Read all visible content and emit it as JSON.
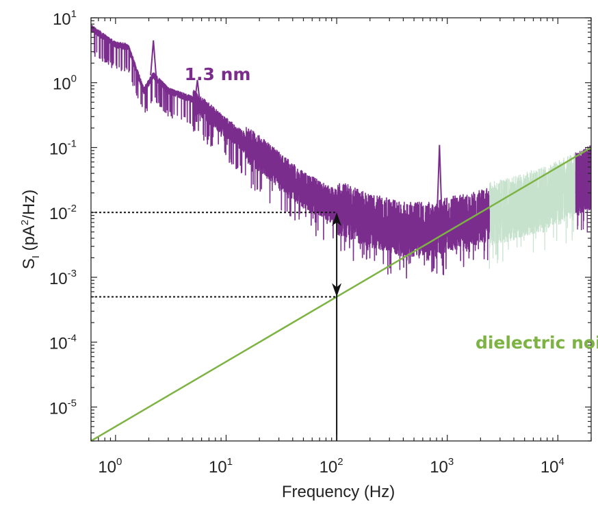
{
  "chart_data": {
    "type": "line",
    "xlabel": "Frequency (Hz)",
    "ylabel": {
      "base": "S",
      "sub": "I",
      "pre": " (pA",
      "sup": "2",
      "post": "/Hz)"
    },
    "x_scale": "log",
    "y_scale": "log",
    "xlim": [
      0.6,
      20000
    ],
    "ylim": [
      3e-06,
      10
    ],
    "x_ticks": [
      {
        "value": 1,
        "base": "10",
        "exp": "0"
      },
      {
        "value": 10,
        "base": "10",
        "exp": "1"
      },
      {
        "value": 100,
        "base": "10",
        "exp": "2"
      },
      {
        "value": 1000,
        "base": "10",
        "exp": "3"
      },
      {
        "value": 10000,
        "base": "10",
        "exp": "4"
      }
    ],
    "y_ticks": [
      {
        "value": 1e-05,
        "base": "10",
        "exp": "-5"
      },
      {
        "value": 0.0001,
        "base": "10",
        "exp": "-4"
      },
      {
        "value": 0.001,
        "base": "10",
        "exp": "-3"
      },
      {
        "value": 0.01,
        "base": "10",
        "exp": "-2"
      },
      {
        "value": 0.1,
        "base": "10",
        "exp": "-1"
      },
      {
        "value": 1,
        "base": "10",
        "exp": "0"
      },
      {
        "value": 10,
        "base": "10",
        "exp": "1"
      }
    ],
    "grid": false,
    "series": [
      {
        "name": "1.3 nm",
        "color": "#7b2d8e",
        "style": "noisy-spectrum",
        "trend": [
          [
            0.6,
            7
          ],
          [
            1,
            3.8
          ],
          [
            1.3,
            3.6
          ],
          [
            1.8,
            0.75
          ],
          [
            2.2,
            1.3
          ],
          [
            3,
            0.75
          ],
          [
            5,
            0.55
          ],
          [
            10,
            0.2
          ],
          [
            20,
            0.08
          ],
          [
            50,
            0.022
          ],
          [
            100,
            0.012
          ],
          [
            200,
            0.0075
          ],
          [
            400,
            0.0055
          ],
          [
            700,
            0.0055
          ],
          [
            1000,
            0.0065
          ],
          [
            2000,
            0.0085
          ],
          [
            5000,
            0.013
          ],
          [
            10000,
            0.02
          ],
          [
            20000,
            0.035
          ]
        ],
        "peaks": [
          {
            "x": 2.2,
            "y": 4.5
          },
          {
            "x": 5.5,
            "y": 1.1
          },
          {
            "x": 850,
            "y": 0.11
          }
        ]
      },
      {
        "name": "",
        "color": "#c6e2cd",
        "style": "noisy-band",
        "x_range": [
          2400,
          14500
        ]
      },
      {
        "name": "dielectric noise",
        "color": "#7cb342",
        "style": "line",
        "x": [
          0.6,
          20000
        ],
        "y": [
          3e-06,
          0.1
        ]
      }
    ],
    "reference_levels": [
      {
        "y": 0.01,
        "x_end": 100
      },
      {
        "y": 0.0005,
        "x_end": 100
      }
    ],
    "arrow": {
      "x": 100,
      "y_bottom": 3e-06,
      "y_top": 0.01,
      "y_low": 0.0005
    },
    "annotations": [
      {
        "text": "1.3 nm",
        "color": "#7b2d8e",
        "x": 4.2,
        "y": 1.1
      },
      {
        "text": "dielectric noise",
        "color": "#7cb342",
        "x": 1800,
        "y": 8e-05
      }
    ]
  }
}
